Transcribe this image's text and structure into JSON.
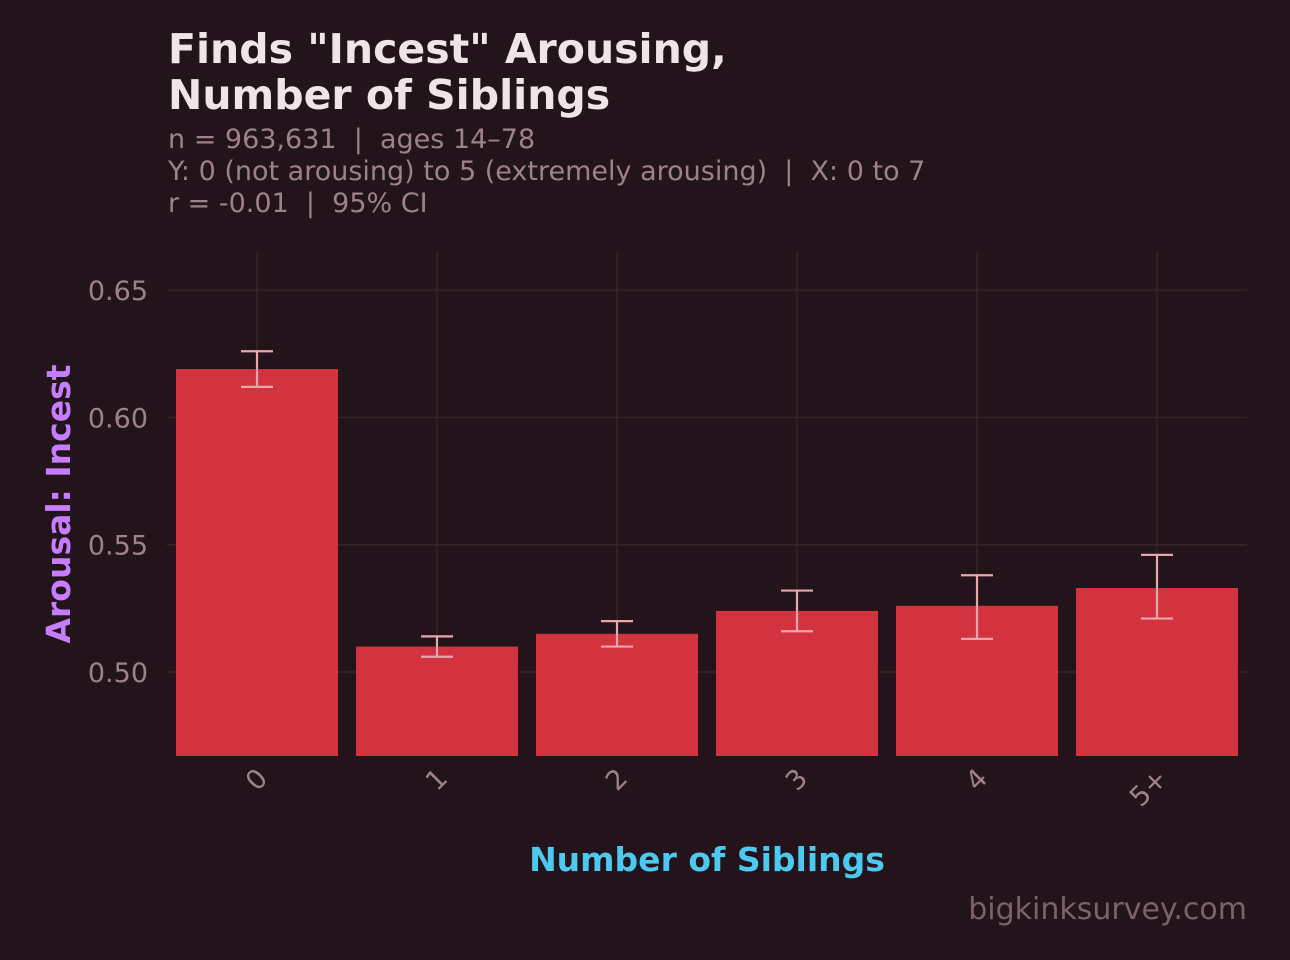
{
  "header": {
    "title_line1": "Finds \"Incest\" Arousing,",
    "title_line2": "Number of Siblings",
    "subtitle_line1": "n = 963,631  |  ages 14–78",
    "subtitle_line2": "Y: 0 (not arousing) to 5 (extremely arousing)  |  X: 0 to 7",
    "subtitle_line3": "r = -0.01  |  95% CI"
  },
  "footer": {
    "credit": "bigkinksurvey.com"
  },
  "colors": {
    "background": "#23131a",
    "bar": "#d3323f",
    "error_bar": "#e9a7ad",
    "grid": "#3a2229",
    "tick_text": "#9d8389",
    "ylabel": "#c77dff",
    "xlabel": "#4cc9f0"
  },
  "chart_data": {
    "type": "bar",
    "categories": [
      "0",
      "1",
      "2",
      "3",
      "4",
      "5+"
    ],
    "values": [
      0.619,
      0.51,
      0.515,
      0.524,
      0.526,
      0.533
    ],
    "error_low": [
      0.612,
      0.506,
      0.51,
      0.516,
      0.513,
      0.521
    ],
    "error_high": [
      0.626,
      0.514,
      0.52,
      0.532,
      0.538,
      0.546
    ],
    "xlabel": "Number of Siblings",
    "ylabel": "Arousal: Incest",
    "ylim": [
      0.467,
      0.665
    ],
    "yticks": [
      0.5,
      0.55,
      0.6,
      0.65
    ],
    "ytick_labels": [
      "0.50",
      "0.55",
      "0.60",
      "0.65"
    ],
    "grid": true,
    "legend": "none"
  }
}
